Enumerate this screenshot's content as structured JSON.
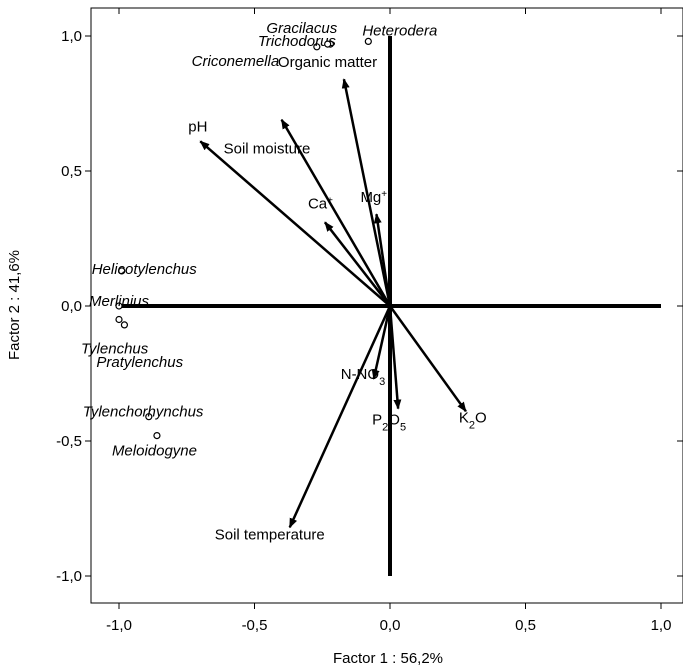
{
  "chart_data": {
    "type": "scatter",
    "title": "",
    "xlabel": "Factor 1 : 56,2%",
    "ylabel": "Factor 2 : 41,6%",
    "xlim": [
      -1.1,
      1.1
    ],
    "ylim": [
      -1.1,
      1.1
    ],
    "xticks": [
      "-1,0",
      "-0,5",
      "0,0",
      "0,5",
      "1,0"
    ],
    "yticks": [
      "1,0",
      "0,5",
      "0,0",
      "-0,5",
      "-1,0"
    ],
    "grid": false,
    "vectors": [
      {
        "label": "Organic matter",
        "x": -0.17,
        "y": 0.84
      },
      {
        "label": "Soil moisture",
        "x": -0.4,
        "y": 0.69
      },
      {
        "label": "pH",
        "x": -0.7,
        "y": 0.61
      },
      {
        "label": "Ca+",
        "x": -0.24,
        "y": 0.31
      },
      {
        "label": "Mg+",
        "x": -0.05,
        "y": 0.34
      },
      {
        "label": "N-NO3",
        "x": -0.06,
        "y": -0.27
      },
      {
        "label": "P2O5",
        "x": 0.03,
        "y": -0.38
      },
      {
        "label": "K2O",
        "x": 0.28,
        "y": -0.39
      },
      {
        "label": "Soil temperature",
        "x": -0.37,
        "y": -0.82
      }
    ],
    "points": [
      {
        "label": "Gracilacus",
        "x": -0.22,
        "y": 0.97
      },
      {
        "label": "Heterodera",
        "x": -0.08,
        "y": 0.98
      },
      {
        "label": "Trichodorus",
        "x": -0.27,
        "y": 0.96
      },
      {
        "label": "Criconemella",
        "x": -0.23,
        "y": 0.97
      },
      {
        "label": "Helicotylenchus",
        "x": -0.99,
        "y": 0.13
      },
      {
        "label": "Merlinius",
        "x": -1.0,
        "y": 0.0
      },
      {
        "label": "Tylenchus",
        "x": -1.0,
        "y": -0.05
      },
      {
        "label": "Pratylenchus",
        "x": -0.98,
        "y": -0.07
      },
      {
        "label": "Tylenchorhynchus",
        "x": -0.89,
        "y": -0.41
      },
      {
        "label": "Meloidogyne",
        "x": -0.86,
        "y": -0.48
      }
    ]
  }
}
